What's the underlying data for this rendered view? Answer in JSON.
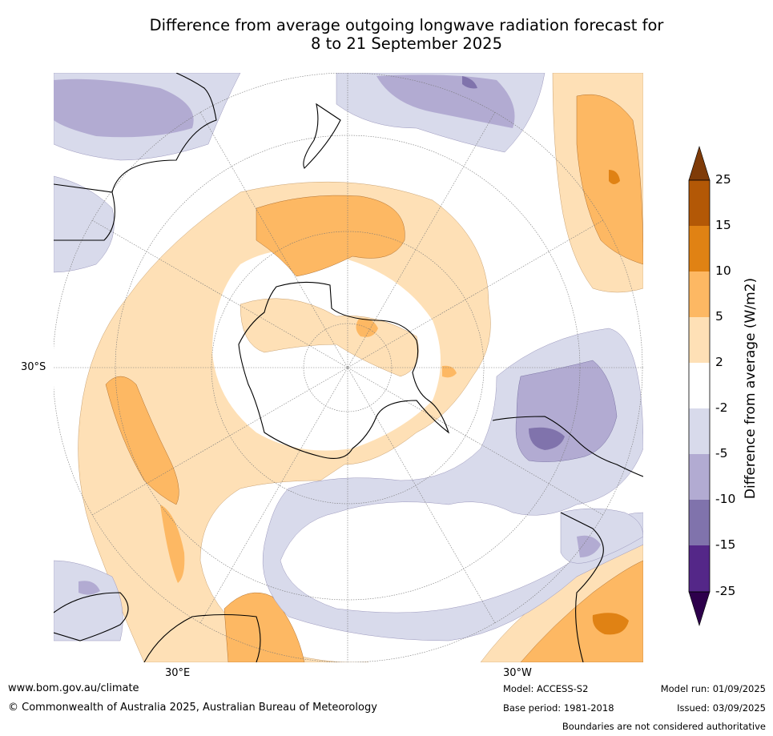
{
  "title_line1": "Difference from average outgoing longwave radiation forecast for",
  "title_line2": "8 to 21 September 2025",
  "lat_label": "30°S",
  "lon_labels": [
    "30°E",
    "30°W"
  ],
  "colorbar": {
    "label": "Difference from average (W/m2)",
    "ticks": [
      "25",
      "15",
      "10",
      "5",
      "2",
      "-2",
      "-5",
      "-10",
      "-15",
      "-25"
    ],
    "colors": {
      "over": "#7f3b08",
      "15_25": "#b35806",
      "10_15": "#e08214",
      "5_10": "#fdb863",
      "2_5": "#fee0b6",
      "neutral": "#ffffff",
      "m5_m2": "#d8daeb",
      "m10_m5": "#b2abd2",
      "m15_m10": "#8073ac",
      "m25_m15": "#542788",
      "under": "#2d004b"
    }
  },
  "footer": {
    "url": "www.bom.gov.au/climate",
    "copyright": "© Commonwealth of Australia 2025, Australian Bureau of Meteorology",
    "model": "Model: ACCESS-S2",
    "base_period": "Base period: 1981-2018",
    "model_run": "Model run: 01/09/2025",
    "issued": "Issued: 03/09/2025",
    "disclaimer": "Boundaries are not considered authoritative"
  }
}
